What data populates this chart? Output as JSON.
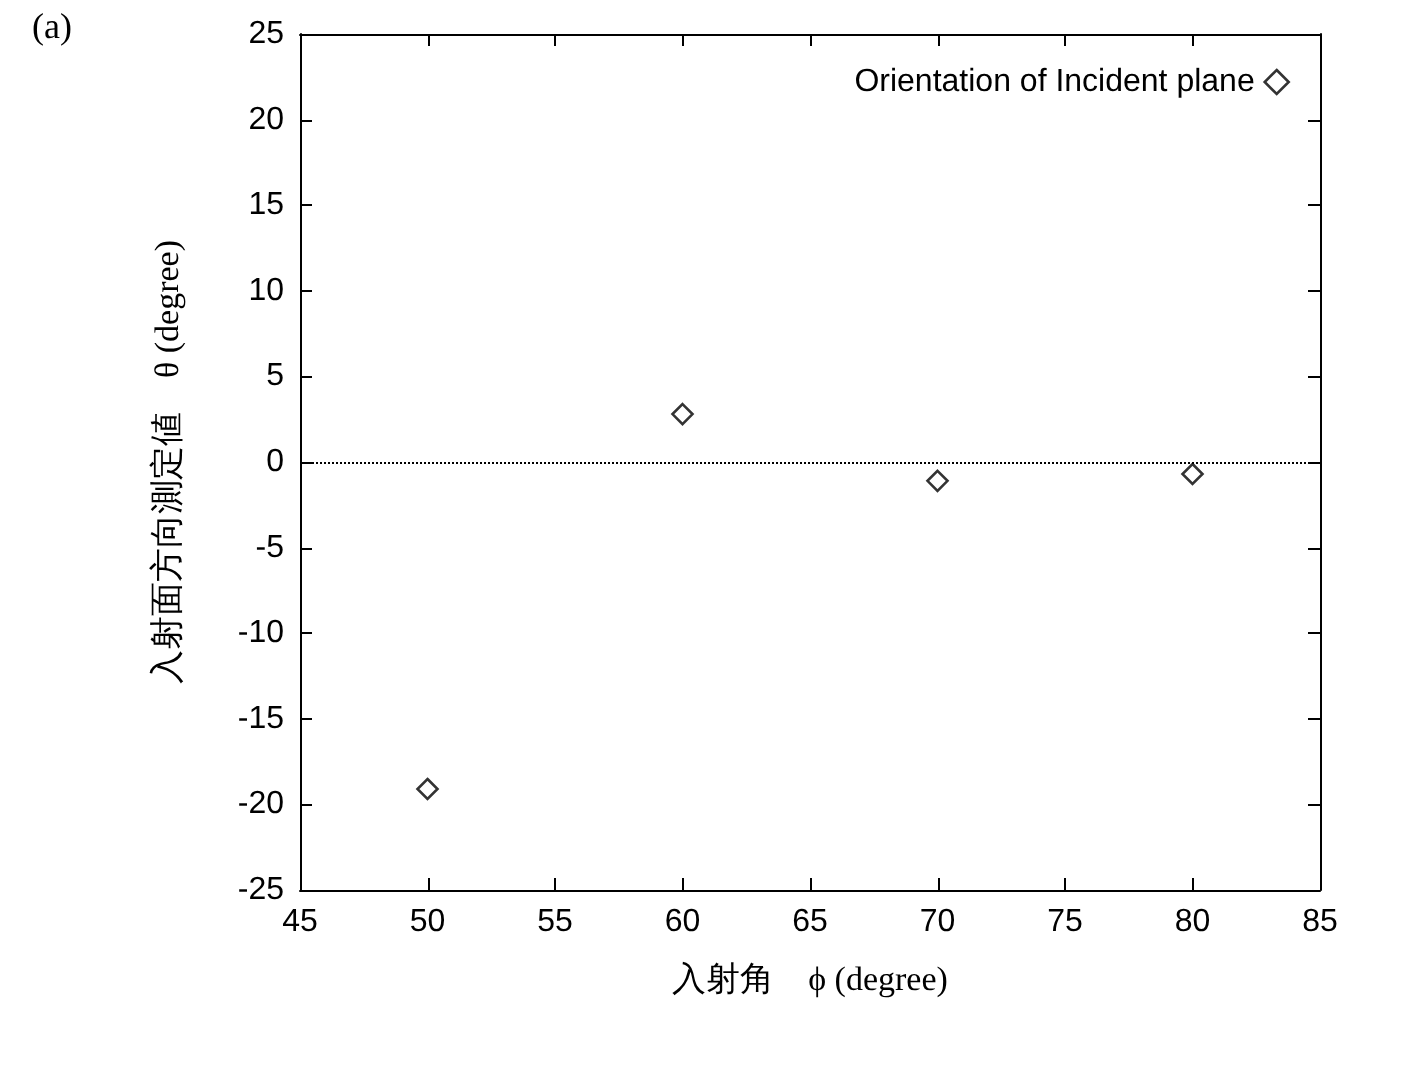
{
  "chart_data": {
    "type": "scatter",
    "xlabel": "入射角　ϕ (degree)",
    "ylabel": "入射面方向測定値　θ (degree)",
    "annotations": [
      "(a)"
    ],
    "x": [
      50,
      60,
      70,
      80
    ],
    "series": [
      {
        "name": "Orientation of Incident plane",
        "color": "#000000",
        "values": [
          -19.1,
          2.8,
          -1.1,
          -0.7
        ]
      }
    ],
    "xlim": [
      45,
      85
    ],
    "xticks": [
      45,
      50,
      55,
      60,
      65,
      70,
      75,
      80,
      85
    ],
    "ylim": [
      -25,
      25
    ],
    "yticks": [
      -25,
      -20,
      -15,
      -10,
      -5,
      0,
      5,
      10,
      15,
      20,
      25
    ],
    "ref_lines": [
      {
        "axis": "y",
        "value": 0,
        "line_style": "dotted",
        "color": "#000000"
      }
    ],
    "marker": "diamond",
    "legend": "top right",
    "grid": false
  }
}
